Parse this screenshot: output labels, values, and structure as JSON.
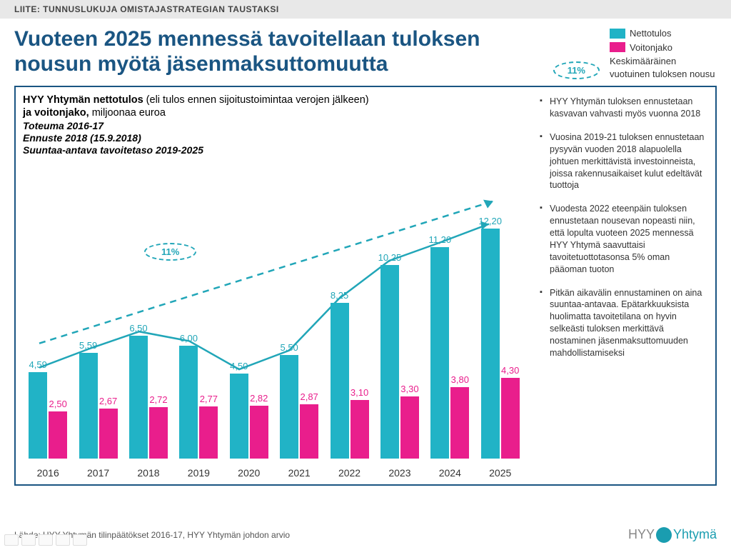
{
  "header": "LIITE: TUNNUSLUKUJA OMISTAJASTRATEGIAN TAUSTAKSI",
  "title": "Vuoteen 2025 mennessä tavoitellaan tuloksen nousun myötä jäsenmaksuttomuutta",
  "legend": {
    "series1": "Nettotulos",
    "series2": "Voitonjako",
    "growth_label": "Keskimääräinen vuotuinen tuloksen nousu",
    "growth_value": "11%"
  },
  "chart": {
    "header_line1_bold": "HYY Yhtymän nettotulos",
    "header_line1_rest": " (eli tulos ennen sijoitustoimintaa verojen jälkeen)",
    "header_line2_bold": "ja voitonjako,",
    "header_line2_rest": " miljoonaa euroa",
    "sub1": "Toteuma 2016-17",
    "sub2": "Ennuste 2018 (15.9.2018)",
    "sub3": "Suuntaa-antava tavoitetaso 2019-2025",
    "inner_badge": "11%",
    "colors": {
      "nettotulos": "#21b3c6",
      "voitonjako": "#e91e8c",
      "nettotulos_label": "#21a6b8",
      "voitonjako_label": "#e91e8c",
      "solid_arrow": "#21a6b8",
      "dashed_arrow": "#21a6b8"
    },
    "ymax": 14,
    "years": [
      "2016",
      "2017",
      "2018",
      "2019",
      "2020",
      "2021",
      "2022",
      "2023",
      "2024",
      "2025"
    ],
    "nettotulos": [
      4.59,
      5.59,
      6.5,
      6.0,
      4.5,
      5.5,
      8.25,
      10.25,
      11.2,
      12.2
    ],
    "nettotulos_labels": [
      "4,59",
      "5,59",
      "6,50",
      "6,00",
      "4,50",
      "5,50",
      "8,25",
      "10,25",
      "11,20",
      "12,20"
    ],
    "voitonjako": [
      2.5,
      2.67,
      2.72,
      2.77,
      2.82,
      2.87,
      3.1,
      3.3,
      3.8,
      4.3
    ],
    "voitonjako_labels": [
      "2,50",
      "2,67",
      "2,72",
      "2,77",
      "2,82",
      "2,87",
      "3,10",
      "3,30",
      "3,80",
      "4,30"
    ]
  },
  "bullets": [
    "HYY Yhtymän tuloksen ennustetaan kasvavan vahvasti myös vuonna 2018",
    "Vuosina 2019-21 tuloksen ennustetaan pysyvän vuoden 2018 alapuolella johtuen merkittävistä investoinneista, joissa rakennusaikaiset kulut edeltävät tuottoja",
    "Vuodesta 2022 eteenpäin tuloksen ennustetaan nousevan nopeasti niin, että lopulta vuoteen 2025 mennessä HYY Yhtymä saavuttaisi tavoitetuottotasonsa 5% oman pääoman tuoton",
    "Pitkän aikavälin ennustaminen on aina suuntaa-antavaa. Epätarkkuuksista huolimatta tavoitetilana on hyvin selkeästi tuloksen merkittävä nostaminen jäsenmaksuttomuuden mahdollistamiseksi"
  ],
  "footer_source": "Lähde: HYY Yhtymän tilinpäätökset 2016-17, HYY Yhtymän johdon arvio",
  "logo": {
    "part1": "HYY",
    "part2": "Yhtymä"
  }
}
